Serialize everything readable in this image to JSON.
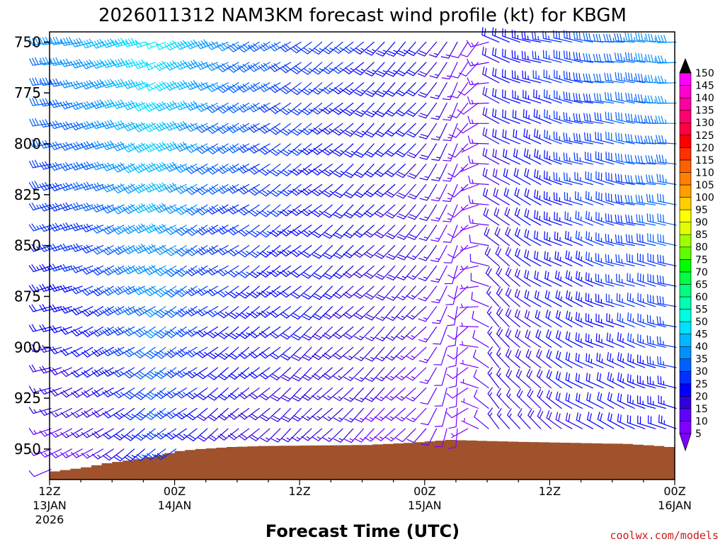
{
  "chart_data": {
    "type": "wind_barb_profile",
    "title": "2026011312 NAM3KM forecast wind profile (kt) for KBGM",
    "xlabel": "Forecast Time (UTC)",
    "ylabel": "",
    "credit": "coolwx.com/models",
    "y_axis": {
      "range": [
        965,
        745
      ],
      "ticks": [
        750,
        775,
        800,
        825,
        850,
        875,
        900,
        925,
        950
      ],
      "tick_labels": [
        "750",
        "775",
        "800",
        "825",
        "850",
        "875",
        "900",
        "925",
        "950"
      ]
    },
    "x_axis": {
      "range_hours": [
        0,
        60
      ],
      "ticks": [
        {
          "hour": 0,
          "label": "12Z",
          "sub1": "13JAN",
          "sub2": "2026"
        },
        {
          "hour": 12,
          "label": "00Z",
          "sub1": "14JAN",
          "sub2": ""
        },
        {
          "hour": 24,
          "label": "12Z",
          "sub1": "",
          "sub2": ""
        },
        {
          "hour": 36,
          "label": "00Z",
          "sub1": "15JAN",
          "sub2": ""
        },
        {
          "hour": 48,
          "label": "12Z",
          "sub1": "",
          "sub2": ""
        },
        {
          "hour": 60,
          "label": "00Z",
          "sub1": "16JAN",
          "sub2": ""
        }
      ]
    },
    "barb_hours_step": 1,
    "barb_pressures": [
      750,
      760,
      770,
      780,
      790,
      800,
      810,
      820,
      830,
      840,
      850,
      860,
      870,
      880,
      890,
      900,
      910,
      920,
      930,
      940,
      950,
      960
    ],
    "wind_model_keyframes": [
      {
        "hour": 0,
        "dir_low": 250,
        "dir_high": 260,
        "spd_low": 10,
        "spd_high": 35
      },
      {
        "hour": 5,
        "dir_low": 235,
        "dir_high": 255,
        "spd_low": 12,
        "spd_high": 40
      },
      {
        "hour": 11,
        "dir_low": 230,
        "dir_high": 250,
        "spd_low": 25,
        "spd_high": 50
      },
      {
        "hour": 16,
        "dir_low": 230,
        "dir_high": 245,
        "spd_low": 15,
        "spd_high": 38
      },
      {
        "hour": 25,
        "dir_low": 225,
        "dir_high": 235,
        "spd_low": 15,
        "spd_high": 28
      },
      {
        "hour": 36,
        "dir_low": 225,
        "dir_high": 220,
        "spd_low": 10,
        "spd_high": 22
      },
      {
        "hour": 39,
        "dir_low": 180,
        "dir_high": 210,
        "spd_low": 8,
        "spd_high": 15
      },
      {
        "hour": 41,
        "dir_low": 300,
        "dir_high": 220,
        "spd_low": 5,
        "spd_high": 8
      },
      {
        "hour": 43,
        "dir_low": 330,
        "dir_high": 290,
        "spd_low": 15,
        "spd_high": 20
      },
      {
        "hour": 50,
        "dir_low": 305,
        "dir_high": 280,
        "spd_low": 18,
        "spd_high": 28
      },
      {
        "hour": 60,
        "dir_low": 290,
        "dir_high": 270,
        "spd_low": 20,
        "spd_high": 38
      }
    ],
    "terrain_surface_pressure": [
      {
        "hour": 0,
        "p": 961
      },
      {
        "hour": 3,
        "p": 959
      },
      {
        "hour": 5,
        "p": 957
      },
      {
        "hour": 8,
        "p": 955
      },
      {
        "hour": 10,
        "p": 953
      },
      {
        "hour": 12,
        "p": 951
      },
      {
        "hour": 14,
        "p": 950
      },
      {
        "hour": 17,
        "p": 949
      },
      {
        "hour": 20,
        "p": 948.5
      },
      {
        "hour": 30,
        "p": 948
      },
      {
        "hour": 34,
        "p": 947
      },
      {
        "hour": 38,
        "p": 945.5
      },
      {
        "hour": 41,
        "p": 946
      },
      {
        "hour": 45,
        "p": 946.5
      },
      {
        "hour": 50,
        "p": 947
      },
      {
        "hour": 55,
        "p": 947.5
      },
      {
        "hour": 58,
        "p": 948.5
      },
      {
        "hour": 60,
        "p": 949.5
      }
    ],
    "terrain_color": "#a0522d",
    "colorbar": {
      "levels": [
        "5",
        "10",
        "15",
        "20",
        "25",
        "30",
        "35",
        "40",
        "45",
        "50",
        "55",
        "60",
        "65",
        "70",
        "75",
        "80",
        "85",
        "90",
        "95",
        "100",
        "105",
        "110",
        "115",
        "120",
        "125",
        "130",
        "135",
        "140",
        "145",
        "150"
      ],
      "colors": [
        "#8000ff",
        "#6000ff",
        "#3000e0",
        "#0000ff",
        "#0030ff",
        "#0060ff",
        "#0090ff",
        "#00b8ff",
        "#00e0ff",
        "#00ffe0",
        "#00ffb0",
        "#00ff80",
        "#00ff40",
        "#00ff00",
        "#60ff00",
        "#a0ff00",
        "#e0ff00",
        "#ffff00",
        "#ffd000",
        "#ffa000",
        "#ff8000",
        "#ff6000",
        "#ff3000",
        "#ff0000",
        "#ff0040",
        "#ff0070",
        "#ff00a0",
        "#ff00d0",
        "#ff00ff",
        "#e000ff"
      ]
    }
  }
}
